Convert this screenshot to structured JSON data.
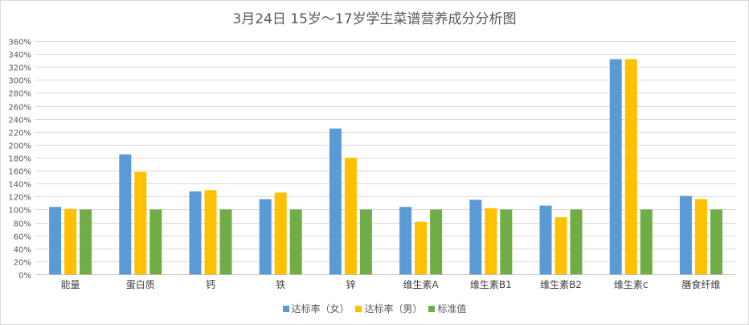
{
  "chart_data": {
    "type": "bar",
    "title": "3月24日 15岁～17岁学生菜谱营养成分分析图",
    "categories": [
      "能量",
      "蛋白质",
      "钙",
      "铁",
      "锌",
      "维生素A",
      "维生素B1",
      "维生素B2",
      "维生素c",
      "膳食纤维"
    ],
    "series": [
      {
        "name": "达标率（女）",
        "color": "#5b9bd5",
        "values": [
          104,
          185,
          128,
          116,
          225,
          104,
          115,
          106,
          332,
          121
        ]
      },
      {
        "name": "达标率（男）",
        "color": "#ffc000",
        "values": [
          101,
          158,
          130,
          126,
          180,
          81,
          102,
          88,
          332,
          116
        ]
      },
      {
        "name": "标准值",
        "color": "#70ad47",
        "values": [
          100,
          100,
          100,
          100,
          100,
          100,
          100,
          100,
          100,
          100
        ]
      }
    ],
    "y_ticks": [
      "0%",
      "20%",
      "40%",
      "60%",
      "80%",
      "100%",
      "120%",
      "140%",
      "160%",
      "180%",
      "200%",
      "220%",
      "240%",
      "260%",
      "280%",
      "300%",
      "320%",
      "340%",
      "360%"
    ],
    "ylim": [
      0,
      360
    ],
    "y_unit": "%",
    "grid": true,
    "legend_position": "bottom"
  }
}
